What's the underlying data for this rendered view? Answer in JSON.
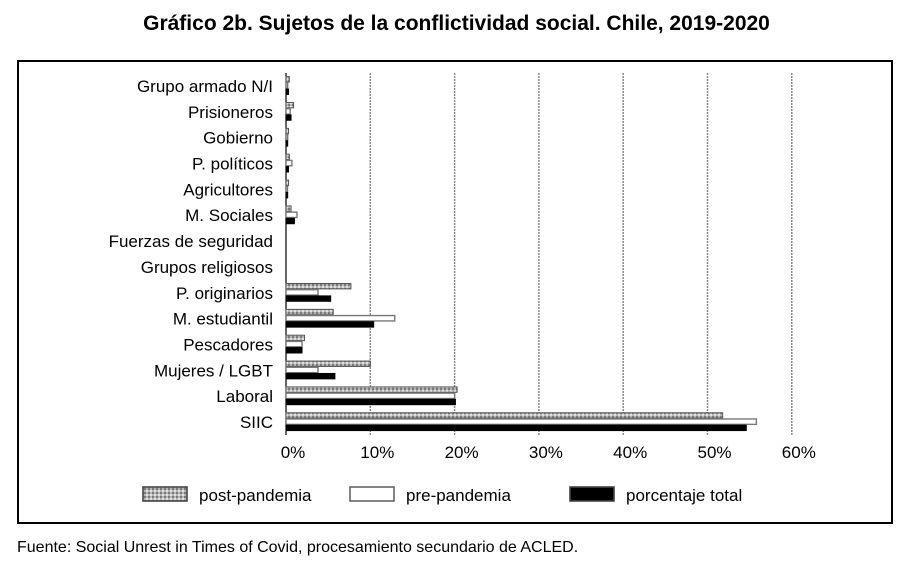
{
  "title": "Gráfico 2b. Sujetos de la conflictividad social. Chile, 2019-2020",
  "source": "Fuente: Social Unrest in Times of Covid, procesamiento secundario de ACLED.",
  "colors": {
    "post": "#a8a8a8",
    "pre": "#ffffff",
    "total": "#000000",
    "grid": "#888888"
  },
  "chart_data": {
    "type": "bar",
    "orientation": "horizontal",
    "categories": [
      "Grupo armado N/I",
      "Prisioneros",
      "Gobierno",
      "P. políticos",
      "Agricultores",
      "M. Sociales",
      "Fuerzas de seguridad",
      "Grupos religiosos",
      "P. originarios",
      "M. estudiantil",
      "Pescadores",
      "Mujeres / LGBT",
      "Laboral",
      "SIIC"
    ],
    "series": [
      {
        "name": "post-pandemia",
        "values": [
          0.4,
          0.9,
          0.3,
          0.4,
          0.3,
          0.6,
          0,
          0,
          7.7,
          5.6,
          2.2,
          10.0,
          20.3,
          51.8
        ]
      },
      {
        "name": "pre-pandemia",
        "values": [
          0.2,
          0.5,
          0.2,
          0.7,
          0.1,
          1.3,
          0,
          0,
          3.8,
          12.9,
          1.9,
          3.8,
          20.0,
          55.8
        ]
      },
      {
        "name": "porcentaje total",
        "values": [
          0.3,
          0.6,
          0.2,
          0.3,
          0.2,
          1.0,
          0,
          0,
          5.3,
          10.4,
          1.9,
          5.8,
          20.1,
          54.6
        ]
      }
    ],
    "xticks": [
      "0%",
      "10%",
      "20%",
      "30%",
      "40%",
      "50%",
      "60%"
    ],
    "xlim": [
      0,
      60
    ],
    "grid": true,
    "legend_position": "bottom"
  }
}
